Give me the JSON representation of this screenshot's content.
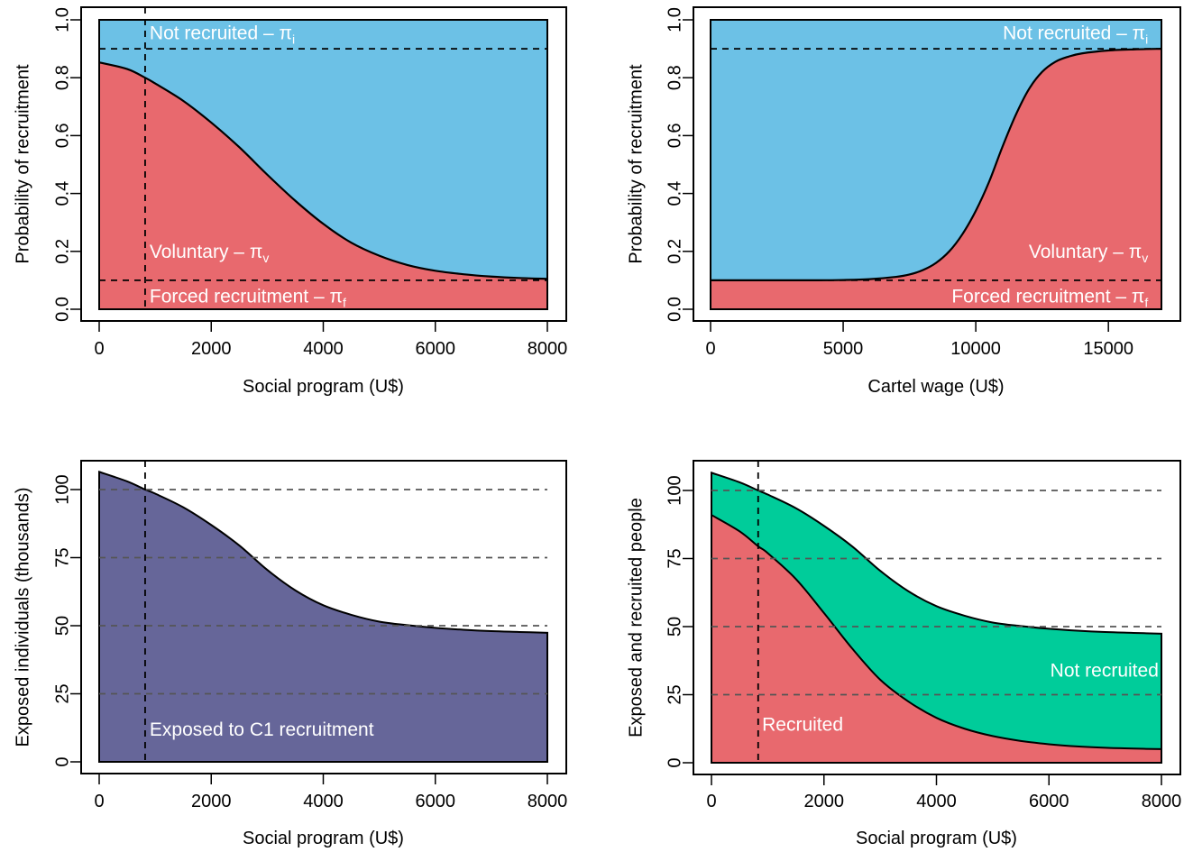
{
  "figure": {
    "background": "#ffffff"
  },
  "colors": {
    "not_recruited_blue": "#6CC1E6",
    "recruited_red": "#E8696E",
    "not_recruited_green": "#00CC9A",
    "exposed_purple": "#666699",
    "line": "#000000",
    "grid_dash": "#555555"
  },
  "chart_data": [
    {
      "id": "top-left",
      "type": "area",
      "title": "",
      "xlabel": "Social program (U$)",
      "ylabel": "Probability of recruitment",
      "xlim": [
        0,
        8000
      ],
      "ylim": [
        0,
        1
      ],
      "xticks": [
        0,
        2000,
        4000,
        6000,
        8000
      ],
      "xtick_labels": [
        "0",
        "2000",
        "4000",
        "6000",
        "8000"
      ],
      "yticks": [
        0,
        0.2,
        0.4,
        0.6,
        0.8,
        1.0
      ],
      "ytick_labels": [
        "0.0",
        "0.2",
        "0.4",
        "0.6",
        "0.8",
        "1.0"
      ],
      "hlines": [
        0.1,
        0.9
      ],
      "vline": 820,
      "x": [
        0,
        500,
        820,
        1000,
        1500,
        2000,
        2500,
        3000,
        3500,
        4000,
        4500,
        5000,
        5500,
        6000,
        6500,
        7000,
        7500,
        8000
      ],
      "series": [
        {
          "name": "Forced recruitment",
          "symbol": "π",
          "subscript": "f",
          "color_key": "recruited_red",
          "lower": 0,
          "values": [
            0.1,
            0.1,
            0.1,
            0.1,
            0.1,
            0.1,
            0.1,
            0.1,
            0.1,
            0.1,
            0.1,
            0.1,
            0.1,
            0.1,
            0.1,
            0.1,
            0.1,
            0.1
          ]
        },
        {
          "name": "Voluntary",
          "symbol": "π",
          "subscript": "v",
          "color_key": "recruited_red",
          "values": [
            0.853,
            0.83,
            0.8,
            0.78,
            0.72,
            0.645,
            0.56,
            0.465,
            0.375,
            0.295,
            0.23,
            0.185,
            0.153,
            0.133,
            0.121,
            0.113,
            0.108,
            0.105
          ]
        },
        {
          "name": "Not recruited",
          "symbol": "π",
          "subscript": "i",
          "color_key": "not_recruited_blue",
          "upper": 1.0
        }
      ],
      "annotations": [
        {
          "text": "Not recruited – π",
          "sub": "i",
          "x": 900,
          "y": 0.955,
          "anchor": "start"
        },
        {
          "text": "Voluntary – π",
          "sub": "v",
          "x": 900,
          "y": 0.2,
          "anchor": "start"
        },
        {
          "text": "Forced recruitment – π",
          "sub": "f",
          "x": 900,
          "y": 0.045,
          "anchor": "start"
        }
      ]
    },
    {
      "id": "top-right",
      "type": "area",
      "title": "",
      "xlabel": "Cartel wage (U$)",
      "ylabel": "Probability of recruitment",
      "xlim": [
        0,
        17000
      ],
      "ylim": [
        0,
        1
      ],
      "xticks": [
        0,
        5000,
        10000,
        15000
      ],
      "xtick_labels": [
        "0",
        "5000",
        "10000",
        "15000"
      ],
      "yticks": [
        0,
        0.2,
        0.4,
        0.6,
        0.8,
        1.0
      ],
      "ytick_labels": [
        "0.0",
        "0.2",
        "0.4",
        "0.6",
        "0.8",
        "1.0"
      ],
      "hlines": [
        0.1,
        0.9
      ],
      "vline": null,
      "x": [
        0,
        2000,
        4000,
        5000,
        6000,
        7000,
        7500,
        8000,
        8500,
        9000,
        9500,
        10000,
        10500,
        11000,
        11500,
        12000,
        12500,
        13000,
        13500,
        14000,
        15000,
        16000,
        17000
      ],
      "series": [
        {
          "name": "Forced recruitment",
          "symbol": "π",
          "subscript": "f",
          "color_key": "recruited_red",
          "lower": 0,
          "values": [
            0.1,
            0.1,
            0.1,
            0.1,
            0.1,
            0.1,
            0.1,
            0.1,
            0.1,
            0.1,
            0.1,
            0.1,
            0.1,
            0.1,
            0.1,
            0.1,
            0.1,
            0.1,
            0.1,
            0.1,
            0.1,
            0.1,
            0.1
          ]
        },
        {
          "name": "Voluntary",
          "symbol": "π",
          "subscript": "v",
          "color_key": "recruited_red",
          "values": [
            0.1,
            0.1,
            0.1,
            0.101,
            0.104,
            0.112,
            0.12,
            0.135,
            0.16,
            0.2,
            0.26,
            0.34,
            0.44,
            0.56,
            0.67,
            0.76,
            0.82,
            0.855,
            0.873,
            0.884,
            0.894,
            0.898,
            0.9
          ]
        },
        {
          "name": "Not recruited",
          "symbol": "π",
          "subscript": "i",
          "color_key": "not_recruited_blue",
          "upper": 1.0
        }
      ],
      "annotations": [
        {
          "text": "Not recruited – π",
          "sub": "i",
          "x": 16500,
          "y": 0.955,
          "anchor": "end"
        },
        {
          "text": "Voluntary – π",
          "sub": "v",
          "x": 16500,
          "y": 0.2,
          "anchor": "end"
        },
        {
          "text": "Forced recruitment – π",
          "sub": "f",
          "x": 16500,
          "y": 0.045,
          "anchor": "end"
        }
      ]
    },
    {
      "id": "bottom-left",
      "type": "area",
      "title": "",
      "xlabel": "Social program  (U$)",
      "ylabel": "Exposed individuals (thousands)",
      "xlim": [
        0,
        8000
      ],
      "ylim": [
        0,
        110
      ],
      "xticks": [
        0,
        2000,
        4000,
        6000,
        8000
      ],
      "xtick_labels": [
        "0",
        "2000",
        "4000",
        "6000",
        "8000"
      ],
      "yticks": [
        0,
        25,
        50,
        75,
        100
      ],
      "ytick_labels": [
        "0",
        "25",
        "50",
        "75",
        "100"
      ],
      "hlines": [
        25,
        50,
        75,
        100
      ],
      "vline": 820,
      "x": [
        0,
        500,
        820,
        1000,
        1500,
        2000,
        2500,
        3000,
        3500,
        4000,
        4500,
        5000,
        5500,
        6000,
        6500,
        7000,
        7500,
        8000
      ],
      "series": [
        {
          "name": "Exposed to C1 recruitment",
          "color_key": "exposed_purple",
          "lower": 0,
          "values": [
            106.5,
            103,
            100,
            98.5,
            93.5,
            87,
            79.5,
            70.5,
            63,
            57.5,
            54,
            51.5,
            50.2,
            49.2,
            48.5,
            48,
            47.7,
            47.4
          ]
        }
      ],
      "annotations": [
        {
          "text": "Exposed to C1 recruitment",
          "sub": "",
          "x": 900,
          "y": 12,
          "anchor": "start"
        }
      ]
    },
    {
      "id": "bottom-right",
      "type": "area",
      "title": "",
      "xlabel": "Social program  (U$)",
      "ylabel": "Exposed and recruited people",
      "xlim": [
        0,
        8000
      ],
      "ylim": [
        0,
        110
      ],
      "xticks": [
        0,
        2000,
        4000,
        6000,
        8000
      ],
      "xtick_labels": [
        "0",
        "2000",
        "4000",
        "6000",
        "8000"
      ],
      "yticks": [
        0,
        25,
        50,
        75,
        100
      ],
      "ytick_labels": [
        "0",
        "25",
        "50",
        "75",
        "100"
      ],
      "hlines": [
        25,
        50,
        75,
        100
      ],
      "vline": 830,
      "x": [
        0,
        500,
        830,
        1000,
        1500,
        2000,
        2500,
        3000,
        3500,
        4000,
        4500,
        5000,
        5500,
        6000,
        6500,
        7000,
        7500,
        8000
      ],
      "series": [
        {
          "name": "Recruited",
          "color_key": "recruited_red",
          "lower": 0,
          "values": [
            91,
            85,
            79.5,
            77,
            67.5,
            55,
            42,
            30.5,
            22.5,
            16.5,
            12.5,
            9.8,
            8,
            6.8,
            6,
            5.5,
            5.2,
            5
          ]
        },
        {
          "name": "Not recruited",
          "color_key": "not_recruited_green",
          "values": [
            106.5,
            103,
            100,
            98.5,
            93.5,
            87,
            79.5,
            70.5,
            63,
            57.5,
            54,
            51.5,
            50.2,
            49.2,
            48.5,
            48,
            47.7,
            47.4
          ]
        }
      ],
      "annotations": [
        {
          "text": "Not recruited",
          "sub": "",
          "x": 7950,
          "y": 34,
          "anchor": "end"
        },
        {
          "text": "Recruited",
          "sub": "",
          "x": 900,
          "y": 14,
          "anchor": "start"
        }
      ]
    }
  ]
}
